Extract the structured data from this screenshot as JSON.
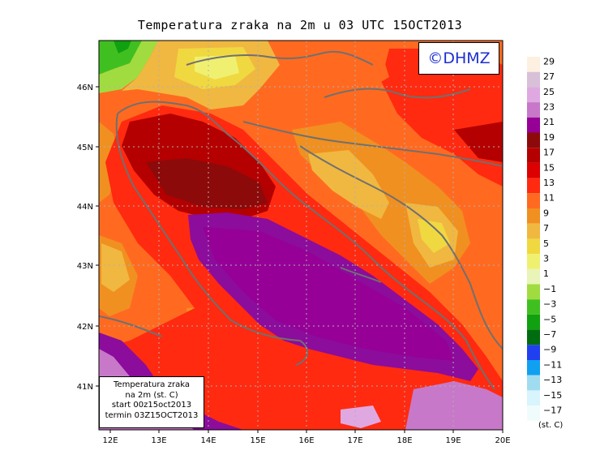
{
  "title": "Temperatura zraka na 2m u 03 UTC 15OCT2013",
  "logo_text": "©DHMZ",
  "info_box": {
    "line1": "Temperatura zraka",
    "line2": "na 2m (st. C)",
    "line3": "start 00z15oct2013",
    "line4": "termin 03Z15OCT2013"
  },
  "x_ticks": [
    "12E",
    "13E",
    "14E",
    "15E",
    "16E",
    "17E",
    "18E",
    "19E",
    "20E"
  ],
  "y_ticks": [
    "46N",
    "45N",
    "44N",
    "43N",
    "42N",
    "41N"
  ],
  "colorbar": {
    "unit": "(st. C)",
    "labels": [
      "29",
      "27",
      "25",
      "23",
      "21",
      "19",
      "17",
      "15",
      "13",
      "11",
      "9",
      "7",
      "5",
      "3",
      "1",
      "−1",
      "−3",
      "−5",
      "−7",
      "−9",
      "−11",
      "−13",
      "−15",
      "−17"
    ],
    "colors": [
      "#fdf0e0",
      "#d8c0d8",
      "#e0a8e0",
      "#c878c8",
      "#960096",
      "#8c0a0a",
      "#b40000",
      "#dc0000",
      "#ff2a10",
      "#ff6a20",
      "#f09020",
      "#f0b840",
      "#f0d840",
      "#f0f070",
      "#e8f4b8",
      "#a0dc40",
      "#40c020",
      "#10a010",
      "#006c10",
      "#2040f0",
      "#10a0f0",
      "#a0dcf0",
      "#d8f4fc",
      "#f0fcfc"
    ]
  },
  "colors": {
    "sea_warm": "#8c0c9c",
    "sea_mid": "#a00a9c",
    "coast_red": "#dc1010",
    "deep_red": "#b40000",
    "orange": "#ff6a20",
    "light_orange": "#f09020",
    "yellow": "#f0d040",
    "green": "#40c020",
    "lilac": "#c878c8",
    "border_gray": "#707070"
  }
}
